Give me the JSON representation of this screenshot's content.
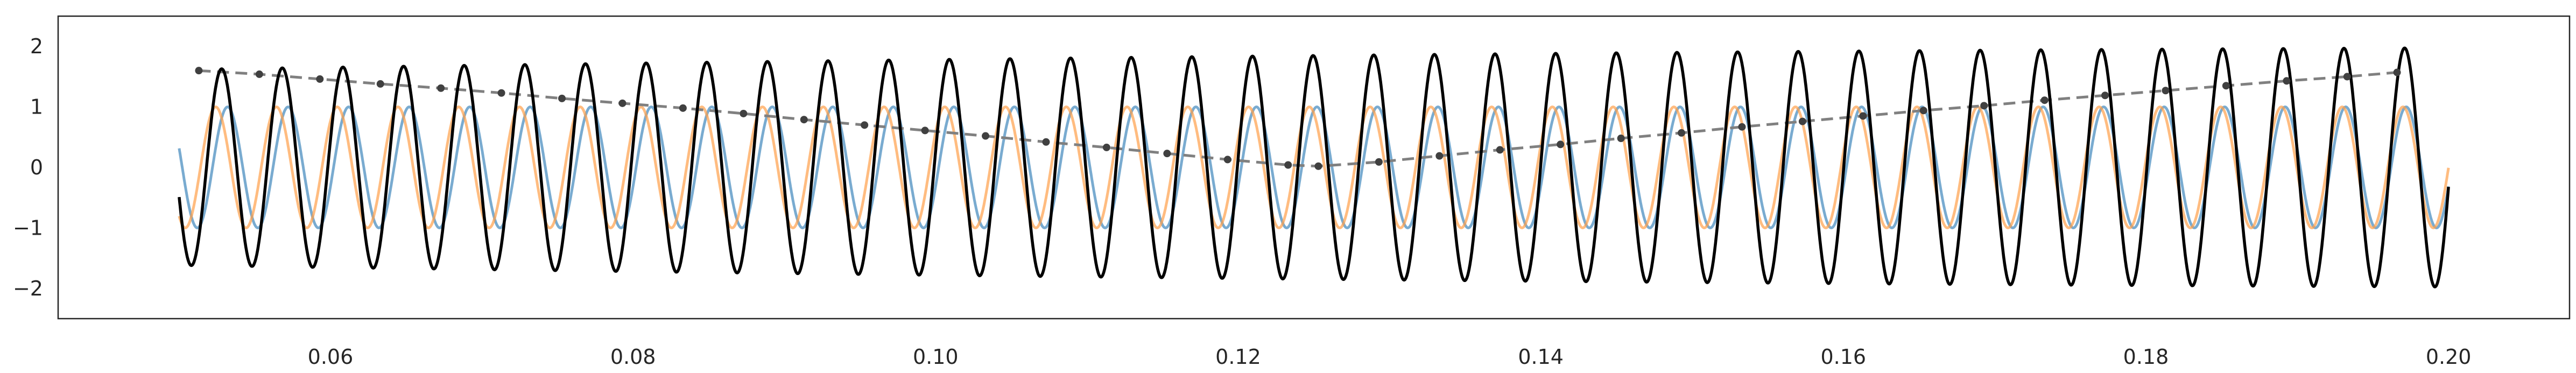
{
  "chart_data": {
    "type": "line",
    "title": "",
    "xlabel": "",
    "ylabel": "",
    "xlim": [
      0.042,
      0.208
    ],
    "ylim": [
      -2.5,
      2.5
    ],
    "grid": false,
    "legend": "none",
    "x_ticks": [
      0.06,
      0.08,
      0.1,
      0.12,
      0.14,
      0.16,
      0.18,
      0.2
    ],
    "x_tick_labels": [
      "0.06",
      "0.08",
      "0.10",
      "0.12",
      "0.14",
      "0.16",
      "0.18",
      "0.20"
    ],
    "y_ticks": [
      -2,
      -1,
      0,
      1,
      2
    ],
    "y_tick_labels": [
      "−2",
      "−1",
      "0",
      "1",
      "2"
    ],
    "x_range": [
      0.05,
      0.2
    ],
    "series": [
      {
        "role": "blue-sine",
        "color": "#4c8fc0",
        "amplitude": 1.0,
        "frequency": 250,
        "phase": -0.32,
        "linestyle": "solid",
        "alpha": 0.75
      },
      {
        "role": "orange-sine",
        "color": "#ff9f4a",
        "amplitude": 1.0,
        "frequency": 249,
        "phase": 1.25,
        "linestyle": "solid",
        "alpha": 0.7
      },
      {
        "role": "black-sum",
        "color": "#000000",
        "linestyle": "solid"
      }
    ],
    "envelope": {
      "color": "#808080",
      "linestyle": "dashed",
      "points": [
        [
          0.0513,
          1.6
        ],
        [
          0.0553,
          1.54
        ],
        [
          0.0593,
          1.46
        ],
        [
          0.0633,
          1.38
        ],
        [
          0.0673,
          1.31
        ],
        [
          0.0713,
          1.23
        ],
        [
          0.0753,
          1.14
        ],
        [
          0.0793,
          1.06
        ],
        [
          0.0833,
          0.98
        ],
        [
          0.0873,
          0.89
        ],
        [
          0.0913,
          0.79
        ],
        [
          0.0953,
          0.7
        ],
        [
          0.0993,
          0.61
        ],
        [
          0.1033,
          0.52
        ],
        [
          0.1073,
          0.42
        ],
        [
          0.1113,
          0.33
        ],
        [
          0.1153,
          0.23
        ],
        [
          0.1193,
          0.13
        ],
        [
          0.1233,
          0.04
        ],
        [
          0.1253,
          0.02
        ],
        [
          0.1293,
          0.09
        ],
        [
          0.1333,
          0.19
        ],
        [
          0.1373,
          0.29
        ],
        [
          0.1413,
          0.38
        ],
        [
          0.1453,
          0.48
        ],
        [
          0.1493,
          0.57
        ],
        [
          0.1533,
          0.67
        ],
        [
          0.1573,
          0.76
        ],
        [
          0.1613,
          0.85
        ],
        [
          0.1653,
          0.94
        ],
        [
          0.1693,
          1.02
        ],
        [
          0.1733,
          1.11
        ],
        [
          0.1773,
          1.19
        ],
        [
          0.1813,
          1.27
        ],
        [
          0.1853,
          1.35
        ],
        [
          0.1893,
          1.43
        ],
        [
          0.1933,
          1.5
        ],
        [
          0.1966,
          1.57
        ]
      ]
    }
  }
}
